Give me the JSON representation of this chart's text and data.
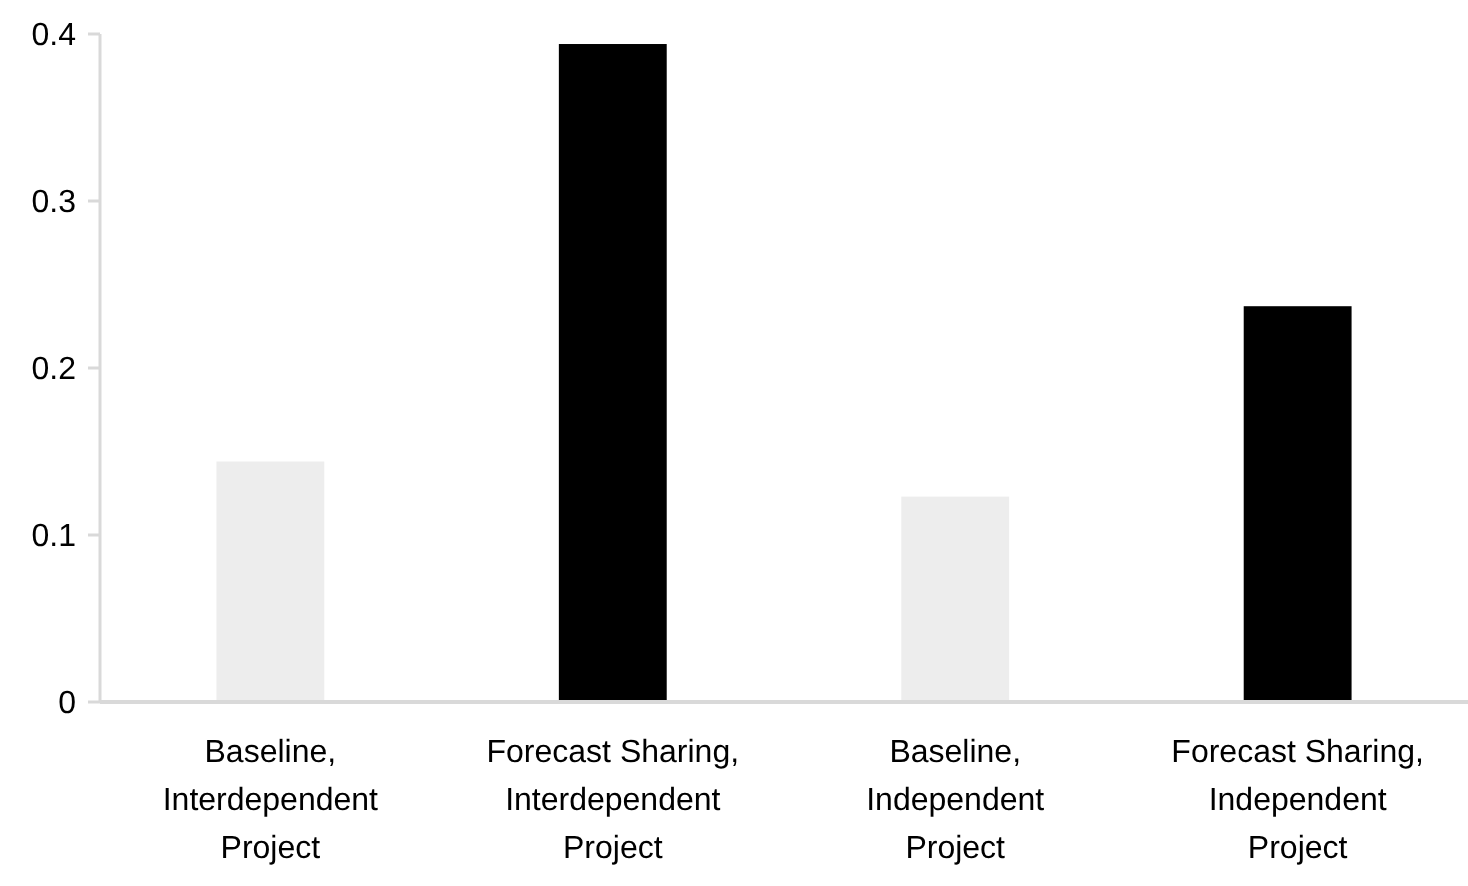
{
  "chart_data": {
    "type": "bar",
    "categories": [
      "Baseline, Interdependent Project",
      "Forecast Sharing, Interdependent Project",
      "Baseline, Independent Project",
      "Forecast Sharing, Independent Project"
    ],
    "values": [
      0.144,
      0.394,
      0.123,
      0.237
    ],
    "colors": [
      "#ededed",
      "#000000",
      "#ededed",
      "#000000"
    ],
    "ylim": [
      0,
      0.4
    ],
    "yticks": [
      0,
      0.1,
      0.2,
      0.3,
      0.4
    ],
    "grid": false
  }
}
